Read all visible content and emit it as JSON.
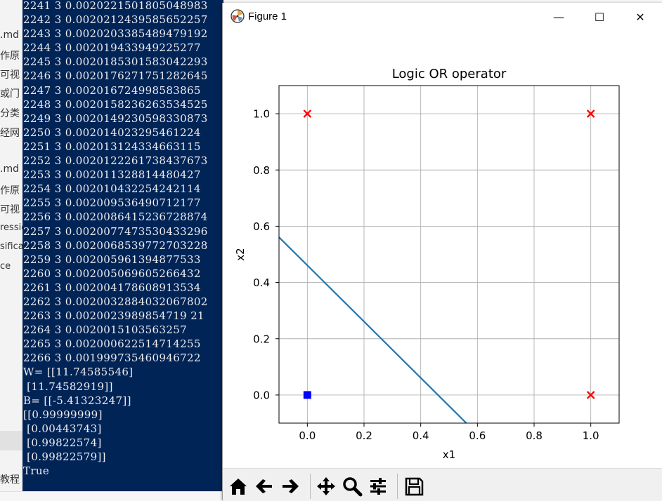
{
  "background_sidebar": {
    "items": [
      ".md",
      "作原",
      "可视",
      "或门",
      "分类",
      "经网",
      ".md",
      "作原",
      "可视",
      "ressic",
      "sifica",
      "ce",
      "教程"
    ]
  },
  "console": {
    "lines": [
      "2241 3 0.0020221501805048983",
      "2242 3 0.0020212439585652257",
      "2243 3 0.0020203385489479192",
      "2244 3 0.002019433949225277",
      "2245 3 0.0020185301583042293",
      "2246 3 0.0020176271751282645",
      "2247 3 0.002016724998583865",
      "2248 3 0.0020158236263534525",
      "2249 3 0.0020149230598330873",
      "2250 3 0.002014023295461224",
      "2251 3 0.002013124334663115",
      "2252 3 0.0020122261738437673",
      "2253 3 0.002011328814480427",
      "2254 3 0.002010432254242114",
      "2255 3 0.002009536490712177",
      "2256 3 0.0020086415236728874",
      "2257 3 0.0020077473530433296",
      "2258 3 0.0020068539772703228",
      "2259 3 0.002005961394877533",
      "2260 3 0.002005069605266432",
      "2261 3 0.002004178608913534",
      "2262 3 0.0020032884032067802",
      "2263 3 0.0020023989854719 21",
      "2264 3 0.0020015103563257",
      "2265 3 0.002000622514714255",
      "2266 3 0.001999735460946722",
      "W= [[11.74585546]",
      " [11.74582919]]",
      "B= [[-5.41323247]]",
      "[[0.99999999]",
      " [0.00443743]",
      " [0.99822574]",
      " [0.99822579]]",
      "True"
    ]
  },
  "window": {
    "title": "Figure 1",
    "minimize_glyph": "—",
    "maximize_glyph": "☐",
    "close_glyph": "✕"
  },
  "chart_data": {
    "type": "scatter",
    "title": "Logic OR operator",
    "xlabel": "x1",
    "ylabel": "x2",
    "xlim": [
      -0.1,
      1.1
    ],
    "ylim": [
      -0.1,
      1.1
    ],
    "xticks": [
      0.0,
      0.2,
      0.4,
      0.6,
      0.8,
      1.0
    ],
    "yticks": [
      0.0,
      0.2,
      0.4,
      0.6,
      0.8,
      1.0
    ],
    "tick_labels": [
      "0.0",
      "0.2",
      "0.4",
      "0.6",
      "0.8",
      "1.0"
    ],
    "grid": true,
    "series": [
      {
        "marker": "x",
        "color": "#ff0000",
        "points": [
          [
            0,
            1
          ],
          [
            1,
            1
          ],
          [
            1,
            0
          ]
        ]
      },
      {
        "marker": "square",
        "color": "#0000ff",
        "points": [
          [
            0,
            0
          ]
        ]
      }
    ],
    "line": {
      "color": "#1f77b4",
      "x": [
        -0.1,
        0.561
      ],
      "y": [
        0.561,
        -0.1
      ]
    }
  },
  "toolbar": {
    "buttons": [
      {
        "name": "home-icon"
      },
      {
        "name": "back-arrow-icon"
      },
      {
        "name": "forward-arrow-icon"
      },
      {
        "name": "pan-icon"
      },
      {
        "name": "zoom-icon"
      },
      {
        "name": "configure-subplots-icon"
      },
      {
        "name": "save-icon"
      }
    ]
  }
}
